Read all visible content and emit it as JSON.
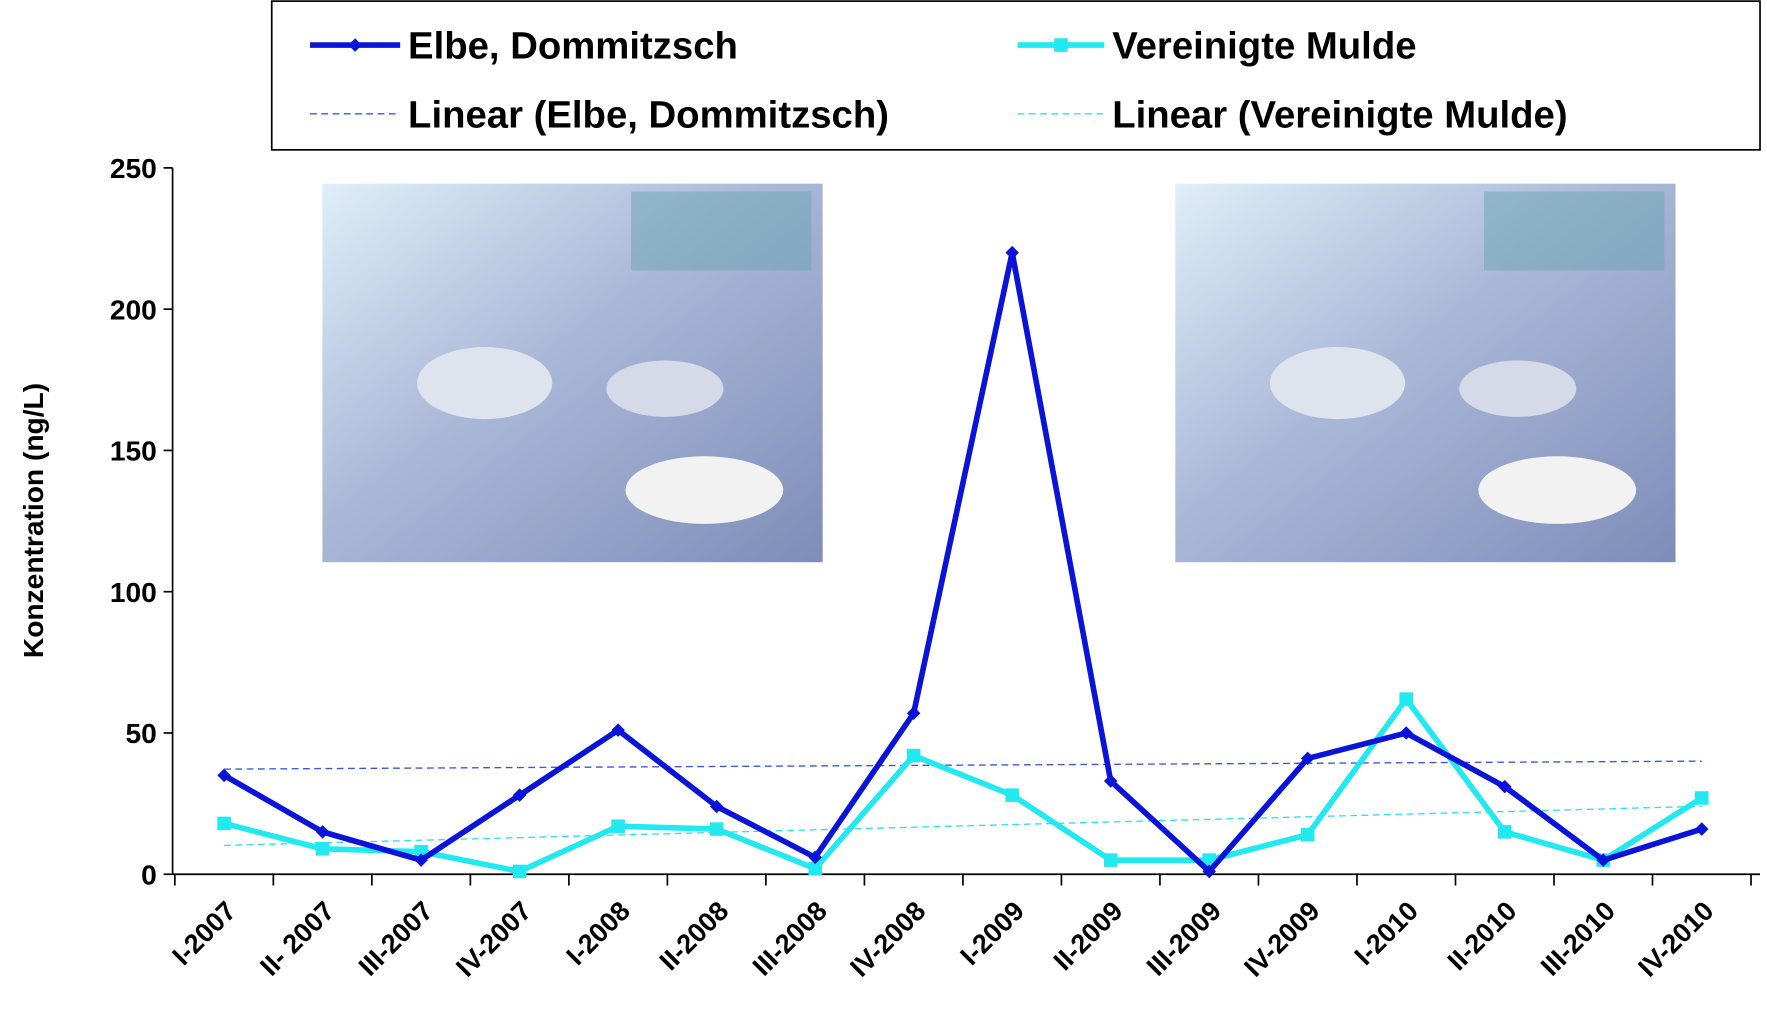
{
  "chart_data": {
    "type": "line",
    "y_label": "Konzentration (ng/L)",
    "categories": [
      "I-2007",
      "II- 2007",
      "III-2007",
      "IV-2007",
      "I-2008",
      "II-2008",
      "III-2008",
      "IV-2008",
      "I-2009",
      "II-2009",
      "III-2009",
      "IV-2009",
      "I-2010",
      "II-2010",
      "III-2010",
      "IV-2010"
    ],
    "series": [
      {
        "name": "Elbe, Dommitzsch",
        "color": "#0a14d8",
        "marker": "diamond",
        "values": [
          35,
          15,
          5,
          28,
          51,
          24,
          6,
          57,
          220,
          33,
          1,
          41,
          50,
          31,
          5,
          16
        ]
      },
      {
        "name": "Vereinigte Mulde",
        "color": "#22e8f0",
        "marker": "square",
        "values": [
          18,
          9,
          8,
          1,
          17,
          16,
          2,
          42,
          28,
          5,
          5,
          14,
          62,
          15,
          5,
          27
        ]
      }
    ],
    "trendlines": [
      {
        "name": "Linear (Elbe, Dommitzsch)",
        "color": "#3a55e0"
      },
      {
        "name": "Linear (Vereinigte Mulde)",
        "color": "#30e0f0"
      }
    ],
    "ylim": [
      0,
      250
    ],
    "yticks": [
      0,
      50,
      100,
      150,
      200,
      250
    ]
  }
}
